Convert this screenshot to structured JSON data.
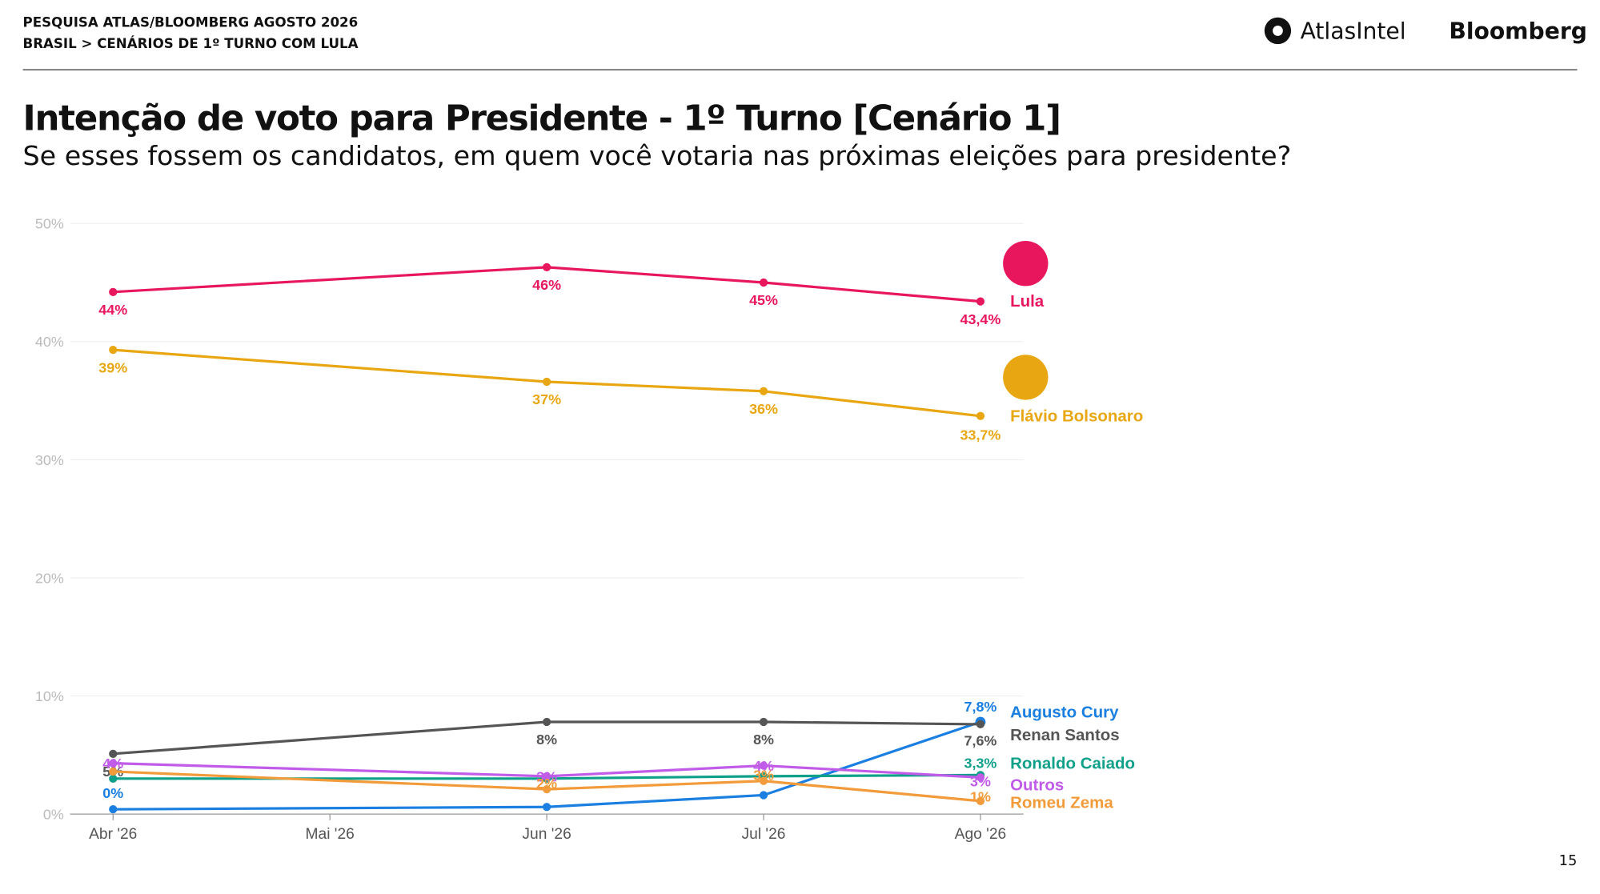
{
  "header": {
    "line1": "PESQUISA ATLAS/BLOOMBERG AGOSTO 2026",
    "line2": "BRASIL > CENÁRIOS DE 1º TURNO COM LULA",
    "logo1": "AtlasIntel",
    "logo2": "Bloomberg"
  },
  "page_number": "15",
  "chart_data": {
    "type": "line",
    "title": "Intenção de voto para Presidente  - 1º Turno [Cenário 1]",
    "subtitle": "Se esses fossem os candidatos, em quem você votaria nas próximas eleições para presidente?",
    "categories": [
      "Abr '26",
      "Mai '26",
      "Jun '26",
      "Jul '26",
      "Ago '26"
    ],
    "ylim": [
      0,
      50
    ],
    "yticks": [
      {
        "value": 0,
        "label": "0%"
      },
      {
        "value": 10,
        "label": "10%"
      },
      {
        "value": 20,
        "label": "20%"
      },
      {
        "value": 30,
        "label": "30%"
      },
      {
        "value": 40,
        "label": "40%"
      },
      {
        "value": 50,
        "label": "50%"
      }
    ],
    "grid": true,
    "connect_gaps": true,
    "series": [
      {
        "name": "Lula",
        "color": "#e8175d",
        "values": [
          44.2,
          null,
          46.3,
          45.0,
          43.4
        ],
        "value_labels": [
          "44%",
          null,
          "46%",
          "45%",
          "43,4%"
        ]
      },
      {
        "name": "Flávio Bolsonaro",
        "color": "#e8a712",
        "values": [
          39.3,
          null,
          36.6,
          35.8,
          33.7
        ],
        "value_labels": [
          "39%",
          null,
          "37%",
          "36%",
          "33,7%"
        ]
      },
      {
        "name": "Augusto Cury",
        "color": "#1a7fe0",
        "values": [
          0.4,
          null,
          0.6,
          1.6,
          7.8
        ],
        "value_labels": [
          "0%",
          null,
          null,
          null,
          "7,8%"
        ]
      },
      {
        "name": "Renan Santos",
        "color": "#555555",
        "values": [
          5.1,
          null,
          7.8,
          7.8,
          7.6
        ],
        "value_labels": [
          "5%",
          null,
          "8%",
          "8%",
          "7,6%"
        ]
      },
      {
        "name": "Ronaldo Caiado",
        "color": "#0fa08a",
        "values": [
          3.0,
          null,
          3.0,
          3.2,
          3.3
        ],
        "value_labels": [
          null,
          null,
          null,
          null,
          "3,3%"
        ]
      },
      {
        "name": "Outros",
        "color": "#c05ce8",
        "values": [
          4.3,
          null,
          3.2,
          4.1,
          3.1
        ],
        "value_labels": [
          "4%",
          null,
          "3%",
          "4%",
          "3%"
        ]
      },
      {
        "name": "Romeu Zema",
        "color": "#f29b3a",
        "values": [
          3.6,
          null,
          2.1,
          2.8,
          1.1
        ],
        "value_labels": [
          null,
          null,
          "2%",
          "3%",
          "1%"
        ]
      }
    ]
  }
}
